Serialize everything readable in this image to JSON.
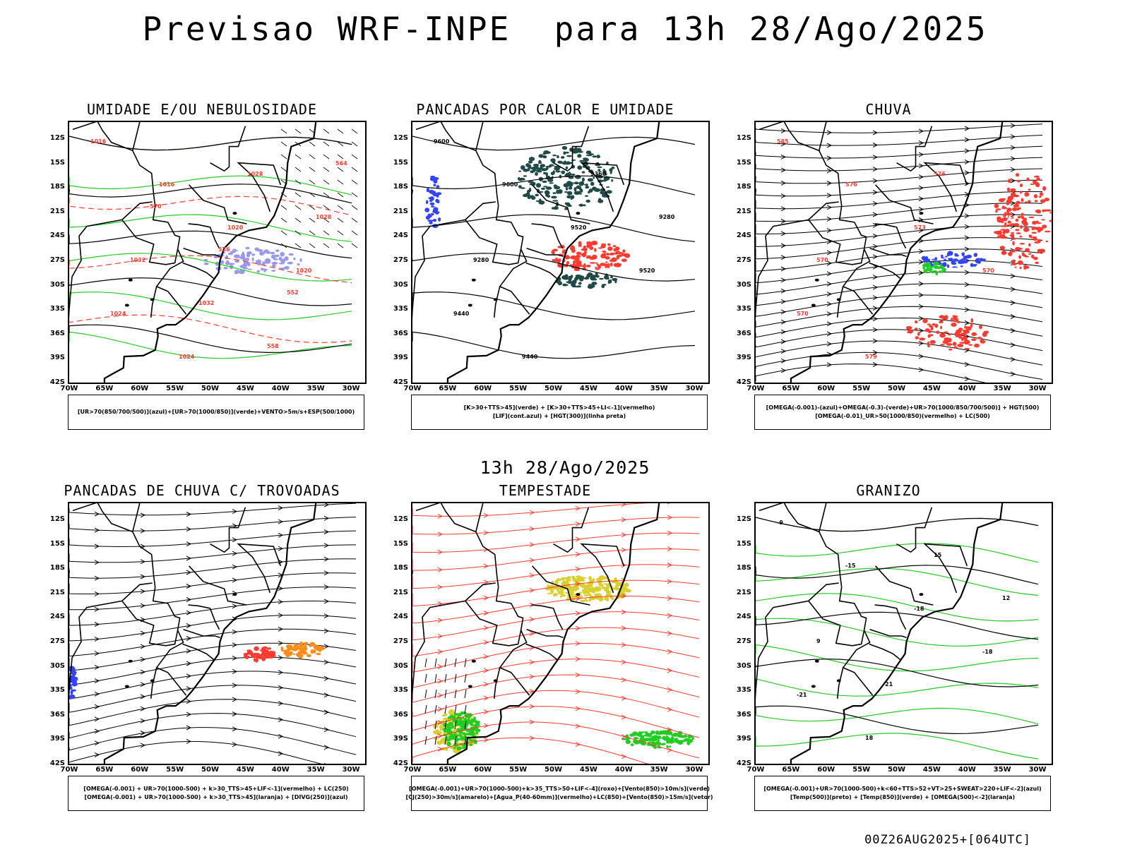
{
  "header": {
    "title": "Previsao WRF-INPE  para 13h 28/Ago/2025",
    "mid_title": "13h 28/Ago/2025",
    "footer": "00Z26AUG2025+[064UTC]"
  },
  "axes": {
    "lat_labels": [
      "12S",
      "15S",
      "18S",
      "21S",
      "24S",
      "27S",
      "30S",
      "33S",
      "36S",
      "39S",
      "42S"
    ],
    "lon_labels": [
      "70W",
      "65W",
      "60W",
      "55W",
      "50W",
      "45W",
      "40W",
      "35W",
      "30W"
    ]
  },
  "colors": {
    "contour": "#000000",
    "red": "#ff3b30",
    "green": "#22cc22",
    "blue": "#3344ff",
    "lavender": "#9999ee",
    "darkteal": "#1f4a48",
    "yellow": "#d9d030",
    "orange": "#ff8c1a"
  },
  "chart_data": [
    {
      "type": "heatmap",
      "panel": "umidade",
      "title": "UMIDADE E/OU NEBULOSIDADE",
      "legend": [
        "[UR>70(850/700/500)](azul)+[UR>70(1000/850)](verde)+VENTO>5m/s+ESP(500/1000)"
      ],
      "contour_labels": [
        "1016",
        "1016",
        "1020",
        "1020",
        "1024",
        "1024",
        "1028",
        "1028",
        "1032",
        "1032",
        "558",
        "564",
        "570",
        "576",
        "552"
      ]
    },
    {
      "type": "heatmap",
      "panel": "pancadas-calor",
      "title": "PANCADAS POR CALOR E UMIDADE",
      "legend": [
        "[K>30+TTS>45](verde) + [K>30+TTS>45+LI<-1](vermelho)",
        "[LIF](cont.azul) + [HGT(300)](linha preta)"
      ],
      "contour_labels": [
        "9600",
        "9600",
        "9520",
        "9520",
        "9440",
        "9440",
        "9360",
        "9280",
        "9280"
      ]
    },
    {
      "type": "heatmap",
      "panel": "chuva",
      "title": "CHUVA",
      "legend": [
        "[OMEGA(-0.001)-(azul)+OMEGA(-0.3)-(verde)+UR>70(1000/850/700/500)] + HGT(500)",
        "[OMEGA(-0.01)_UR>50(1000/850)(vermelho) + LC(500)"
      ],
      "contour_labels": [
        "585",
        "576",
        "573",
        "570",
        "570",
        "579",
        "576",
        "573",
        "570"
      ]
    },
    {
      "type": "heatmap",
      "panel": "trovoadas",
      "title": "PANCADAS DE CHUVA C/ TROVOADAS",
      "legend": [
        "[OMEGA(-0.001) + UR>70(1000-500) + k>30_TTS>45+LIF<-1](vermelho) + LC(250)",
        "[OMEGA(-0.001) + UR>70(1000-500) + k>30_TTS>45](laranja) + [DIVG(250)](azul)"
      ],
      "contour_labels": []
    },
    {
      "type": "heatmap",
      "panel": "tempestade",
      "title": "TEMPESTADE",
      "legend": [
        "[OMEGA(-0.001)+UR>70(1000-500)+k>35_TTS>50+LIF<-4](roxo)+[Vento(850)>10m/s](verde)",
        "[CJ(250)>30m/s](amarelo)+[Agua_P(40-60mm)](vermelho)+LC(850)+[Vento(850)>15m/s](vetor)"
      ],
      "contour_labels": []
    },
    {
      "type": "heatmap",
      "panel": "granizo",
      "title": "GRANIZO",
      "legend": [
        "[OMEGA(-0.001)+UR>70(1000-500)+k<60+TTS>52+VT>25+SWEAT>220+LIF<-2](azul)",
        "[Temp(500)](preto) + [Temp(850)](verde) + [OMEGA(500)<-2](laranja)"
      ],
      "contour_labels": [
        "-9",
        "-15",
        "-18",
        "-18",
        "-21",
        "18",
        "15",
        "12",
        "9",
        "21"
      ]
    }
  ]
}
